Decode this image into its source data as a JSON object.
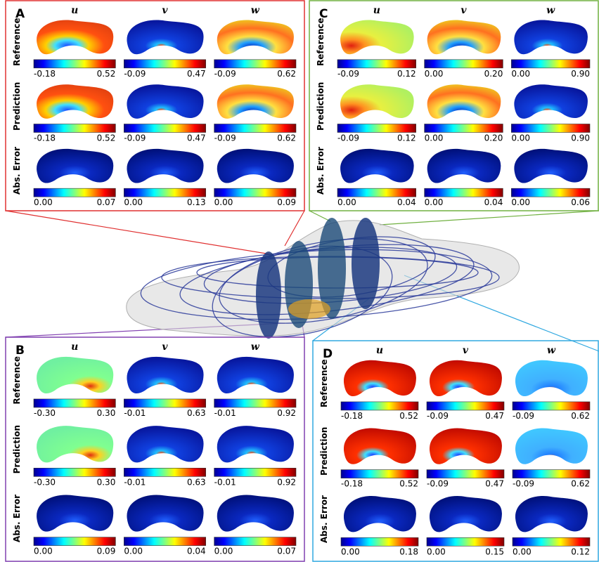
{
  "panels": [
    {
      "label": "A",
      "columns": [
        "u",
        "v",
        "w"
      ],
      "rows": [
        {
          "label": "Reference",
          "ranges": [
            [
              "-0.18",
              "0.52"
            ],
            [
              "-0.09",
              "0.47"
            ],
            [
              "-0.09",
              "0.62"
            ]
          ]
        },
        {
          "label": "Prediction",
          "ranges": [
            [
              "-0.18",
              "0.52"
            ],
            [
              "-0.09",
              "0.47"
            ],
            [
              "-0.09",
              "0.62"
            ]
          ]
        },
        {
          "label": "Abs. Error",
          "ranges": [
            [
              "0.00",
              "0.07"
            ],
            [
              "0.00",
              "0.13"
            ],
            [
              "0.00",
              "0.09"
            ]
          ]
        }
      ]
    },
    {
      "label": "C",
      "columns": [
        "u",
        "v",
        "w"
      ],
      "rows": [
        {
          "label": "Reference",
          "ranges": [
            [
              "-0.09",
              "0.12"
            ],
            [
              "0.00",
              "0.20"
            ],
            [
              "0.00",
              "0.90"
            ]
          ]
        },
        {
          "label": "Prediction",
          "ranges": [
            [
              "-0.09",
              "0.12"
            ],
            [
              "0.00",
              "0.20"
            ],
            [
              "0.00",
              "0.90"
            ]
          ]
        },
        {
          "label": "Abs. Error",
          "ranges": [
            [
              "0.00",
              "0.04"
            ],
            [
              "0.00",
              "0.04"
            ],
            [
              "0.00",
              "0.06"
            ]
          ]
        }
      ]
    },
    {
      "label": "B",
      "columns": [
        "u",
        "v",
        "w"
      ],
      "rows": [
        {
          "label": "Reference",
          "ranges": [
            [
              "-0.30",
              "0.30"
            ],
            [
              "-0.01",
              "0.63"
            ],
            [
              "-0.01",
              "0.92"
            ]
          ]
        },
        {
          "label": "Prediction",
          "ranges": [
            [
              "-0.30",
              "0.30"
            ],
            [
              "-0.01",
              "0.63"
            ],
            [
              "-0.01",
              "0.92"
            ]
          ]
        },
        {
          "label": "Abs. Error",
          "ranges": [
            [
              "0.00",
              "0.09"
            ],
            [
              "0.00",
              "0.04"
            ],
            [
              "0.00",
              "0.07"
            ]
          ]
        }
      ]
    },
    {
      "label": "D",
      "columns": [
        "u",
        "v",
        "w"
      ],
      "rows": [
        {
          "label": "Reference",
          "ranges": [
            [
              "-0.18",
              "0.52"
            ],
            [
              "-0.09",
              "0.47"
            ],
            [
              "-0.09",
              "0.62"
            ]
          ]
        },
        {
          "label": "Prediction",
          "ranges": [
            [
              "-0.18",
              "0.52"
            ],
            [
              "-0.09",
              "0.47"
            ],
            [
              "-0.09",
              "0.62"
            ]
          ]
        },
        {
          "label": "Abs. Error",
          "ranges": [
            [
              "0.00",
              "0.18"
            ],
            [
              "0.00",
              "0.15"
            ],
            [
              "0.00",
              "0.12"
            ]
          ]
        }
      ]
    }
  ]
}
